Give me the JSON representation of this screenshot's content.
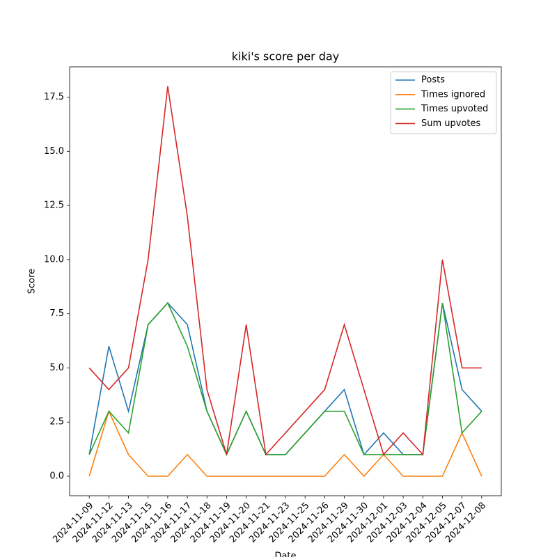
{
  "chart_data": {
    "type": "line",
    "title": "kiki's score per day",
    "x_label": "Date",
    "y_label": "Score",
    "categories": [
      "2024-11-09",
      "2024-11-12",
      "2024-11-13",
      "2024-11-15",
      "2024-11-16",
      "2024-11-17",
      "2024-11-18",
      "2024-11-19",
      "2024-11-20",
      "2024-11-21",
      "2024-11-23",
      "2024-11-25",
      "2024-11-26",
      "2024-11-29",
      "2024-11-30",
      "2024-12-01",
      "2024-12-03",
      "2024-12-04",
      "2024-12-05",
      "2024-12-07",
      "2024-12-08"
    ],
    "series": [
      {
        "name": "Posts",
        "color": "#1f77b4",
        "values": [
          1,
          6,
          3,
          7,
          8,
          7,
          3,
          1,
          3,
          1,
          1,
          2,
          3,
          4,
          1,
          2,
          1,
          1,
          8,
          4,
          3
        ]
      },
      {
        "name": "Times ignored",
        "color": "#ff7f0e",
        "values": [
          0,
          3,
          1,
          0,
          0,
          1,
          0,
          0,
          0,
          0,
          0,
          0,
          0,
          1,
          0,
          1,
          0,
          0,
          0,
          2,
          0
        ]
      },
      {
        "name": "Times upvoted",
        "color": "#2ca02c",
        "values": [
          1,
          3,
          2,
          7,
          8,
          6,
          3,
          1,
          3,
          1,
          1,
          2,
          3,
          3,
          1,
          1,
          1,
          1,
          8,
          2,
          3
        ]
      },
      {
        "name": "Sum upvotes",
        "color": "#d62728",
        "values": [
          5,
          4,
          5,
          10,
          18,
          12,
          4,
          1,
          7,
          1,
          2,
          3,
          4,
          7,
          4,
          1,
          2,
          1,
          10,
          5,
          5
        ]
      }
    ],
    "ylim": [
      -0.9,
      18.9
    ],
    "yticks": [
      {
        "value": 0,
        "label": "0.0"
      },
      2.5,
      {
        "value": 5,
        "label": "5.0"
      },
      7.5,
      {
        "value": 10,
        "label": "10.0"
      },
      12.5,
      {
        "value": 15,
        "label": "15.0"
      },
      17.5
    ],
    "legend": "upper right"
  }
}
